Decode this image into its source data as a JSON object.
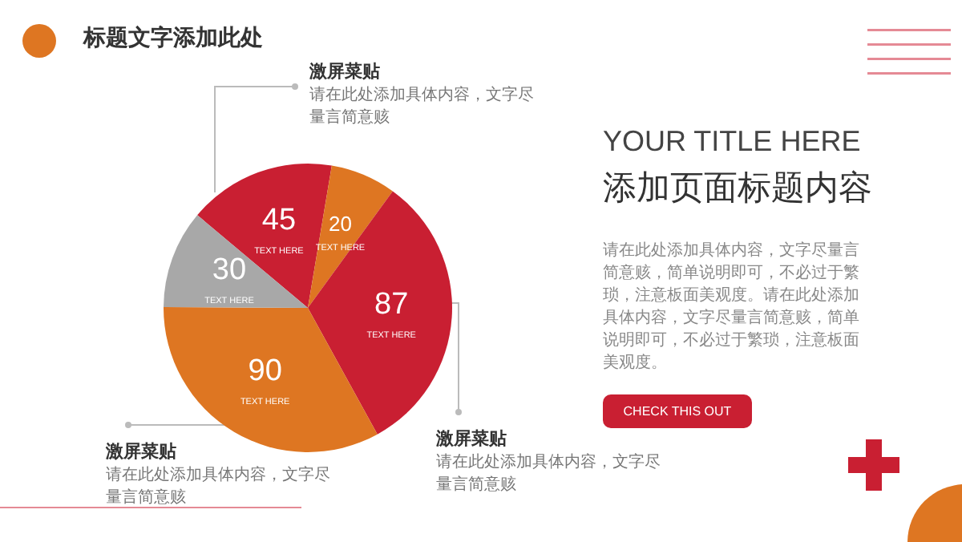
{
  "chart_data": {
    "type": "pie",
    "title": "标题文字添加此处",
    "categories": [
      "TEXT HERE",
      "TEXT HERE",
      "TEXT HERE",
      "TEXT HERE",
      "TEXT HERE"
    ],
    "values": [
      45,
      20,
      87,
      90,
      30
    ],
    "colors": [
      "#c91f32",
      "#de7622",
      "#c91f32",
      "#de7622",
      "#a8a8a8"
    ],
    "data_labels": true,
    "annotations": [
      "激屏菜贴",
      "请在此处添加具体内容，文字尽量言简意赅",
      "激屏菜贴",
      "请在此处添加具体内容，文字尽量言简意赅",
      "激屏菜贴",
      "请在此处添加具体内容，文字尽量言简意赅",
      "YOUR TITLE HERE",
      "添加页面标题内容",
      "请在此处添加具体内容，文字尽量言简意赅，简单说明即可，不必过于繁琐，注意板面美观度。请在此处添加具体内容，文字尽量言简意赅，简单说明即可，不必过于繁琐，注意板面美观度。",
      "CHECK THIS OUT"
    ]
  }
}
